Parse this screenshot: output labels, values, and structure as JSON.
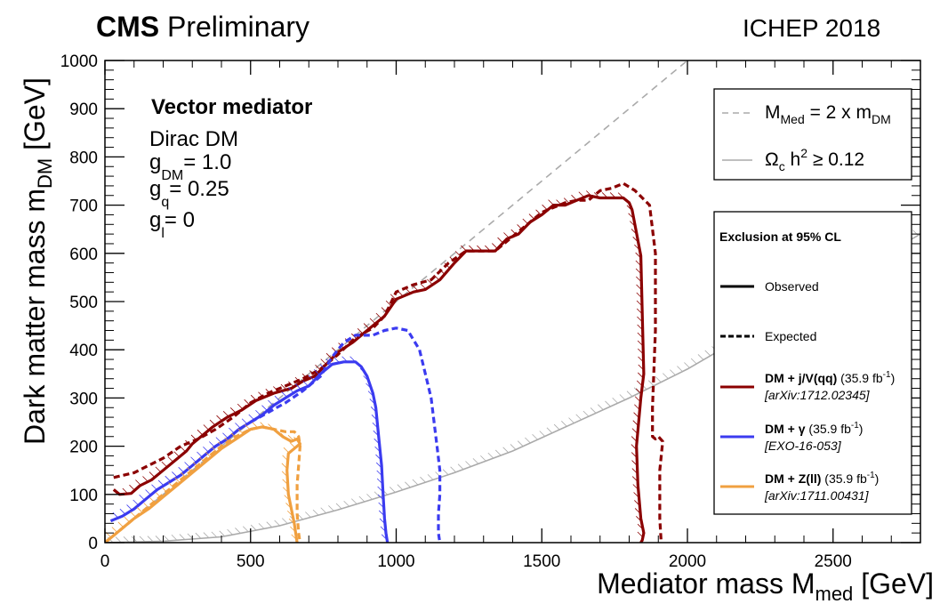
{
  "header": {
    "collab": "CMS",
    "status": "Preliminary",
    "conference": "ICHEP 2018"
  },
  "annotations": {
    "model": "Vector mediator",
    "dm_type": "Dirac DM",
    "couplings": [
      {
        "g": "g",
        "sub": "DM",
        "value": "= 1.0"
      },
      {
        "g": "g",
        "sub": "q",
        "value": "= 0.25"
      },
      {
        "g": "g",
        "sub": "l",
        "value": "= 0"
      }
    ]
  },
  "legend_top": {
    "line1": {
      "main": "M",
      "sub": "Med",
      "rest": " = 2 x m",
      "sub2": "DM"
    },
    "line2": {
      "main": "Ω",
      "sub": "c",
      "rest": " h",
      "sup": "2",
      "rest2": " ≥ 0.12"
    }
  },
  "legend_main": {
    "title": "Exclusion at 95% CL",
    "observed": "Observed",
    "expected": "Expected",
    "entries": [
      {
        "name": "DM + j/V(qq)",
        "lumi_pre": " (35.9 fb",
        "lumi_sup": "-1",
        "lumi_post": ")",
        "ref": "[arXiv:1712.02345]",
        "color": "#8b0000"
      },
      {
        "name": "DM + γ",
        "lumi_pre": " (35.9 fb",
        "lumi_sup": "-1",
        "lumi_post": ")",
        "ref": "[EXO-16-053]",
        "color": "#3b3bf0"
      },
      {
        "name": "DM + Z(ll)",
        "lumi_pre": " (35.9 fb",
        "lumi_sup": "-1",
        "lumi_post": ")",
        "ref": "[arXiv:1711.00431]",
        "color": "#f0a040"
      }
    ]
  },
  "chart_data": {
    "type": "line",
    "xlabel": {
      "main": "Mediator mass M",
      "sub": "med",
      "unit": " [GeV]"
    },
    "ylabel": {
      "main": "Dark matter mass m",
      "sub": "DM",
      "unit": " [GeV]"
    },
    "xlim": [
      0,
      2800
    ],
    "ylim": [
      0,
      1000
    ],
    "x_ticks": [
      0,
      500,
      1000,
      1500,
      2000,
      2500
    ],
    "y_ticks": [
      0,
      100,
      200,
      300,
      400,
      500,
      600,
      700,
      800,
      900,
      1000
    ],
    "x_tick_labels": [
      "0",
      "500",
      "1000",
      "1500",
      "2000",
      "2500"
    ],
    "y_tick_labels": [
      "0",
      "100",
      "200",
      "300",
      "400",
      "500",
      "600",
      "700",
      "800",
      "900",
      "1000"
    ],
    "diagonal": {
      "name": "M_Med = 2 x m_DM",
      "style": "dashed",
      "color": "#aaaaaa",
      "x": [
        0,
        2000
      ],
      "y": [
        0,
        1000
      ]
    },
    "relic": {
      "name": "Ωc h² ≥ 0.12",
      "style": "solid",
      "color": "#aaaaaa",
      "x": [
        0,
        200,
        400,
        600,
        800,
        1000,
        1200,
        1400,
        1600,
        1800,
        2000,
        2200,
        2400,
        2600,
        2800
      ],
      "y": [
        0,
        3,
        12,
        35,
        68,
        105,
        145,
        190,
        245,
        300,
        360,
        430,
        500,
        570,
        640
      ]
    },
    "series": [
      {
        "name": "DM + j/V(qq)",
        "type": "observed",
        "color": "#8b0000",
        "x": [
          30,
          50,
          90,
          120,
          160,
          200,
          240,
          280,
          300,
          340,
          370,
          420,
          470,
          520,
          580,
          640,
          680,
          720,
          760,
          800,
          850,
          900,
          960,
          1000,
          1060,
          1100,
          1150,
          1200,
          1240,
          1300,
          1340,
          1380,
          1420,
          1460,
          1500,
          1540,
          1580,
          1620,
          1660,
          1700,
          1740,
          1780,
          1800,
          1810,
          1840,
          1850,
          1840,
          1825,
          1830,
          1840,
          1850,
          1845,
          1840
        ],
        "y": [
          110,
          100,
          102,
          118,
          130,
          150,
          170,
          190,
          205,
          225,
          240,
          260,
          275,
          295,
          310,
          320,
          335,
          345,
          370,
          395,
          415,
          440,
          470,
          505,
          520,
          525,
          545,
          580,
          605,
          605,
          605,
          630,
          640,
          665,
          680,
          700,
          700,
          710,
          720,
          715,
          715,
          715,
          705,
          690,
          595,
          350,
          300,
          200,
          120,
          50,
          20,
          5,
          0
        ]
      },
      {
        "name": "DM + j/V(qq)",
        "type": "expected",
        "color": "#8b0000",
        "x": [
          30,
          100,
          150,
          200,
          260,
          320,
          380,
          440,
          500,
          560,
          620,
          680,
          740,
          800,
          860,
          920,
          960,
          1000,
          1060,
          1120,
          1180,
          1240,
          1300,
          1340,
          1380,
          1420,
          1460,
          1500,
          1540,
          1580,
          1620,
          1660,
          1700,
          1740,
          1780,
          1820,
          1870,
          1890,
          1890,
          1880,
          1880,
          1890,
          1900,
          1915,
          1905,
          1905,
          1910
        ],
        "y": [
          135,
          145,
          160,
          175,
          200,
          215,
          235,
          260,
          290,
          310,
          325,
          340,
          360,
          390,
          425,
          445,
          470,
          520,
          535,
          545,
          580,
          605,
          605,
          605,
          625,
          645,
          665,
          685,
          695,
          705,
          710,
          710,
          730,
          735,
          745,
          730,
          700,
          600,
          440,
          280,
          220,
          215,
          220,
          210,
          150,
          50,
          0
        ]
      },
      {
        "name": "DM + γ",
        "type": "observed",
        "color": "#3b3bf0",
        "x": [
          20,
          60,
          100,
          140,
          180,
          220,
          260,
          300,
          340,
          380,
          420,
          460,
          500,
          540,
          580,
          620,
          660,
          700,
          740,
          780,
          820,
          860,
          880,
          900,
          920,
          930,
          940,
          950,
          955,
          960,
          965,
          970
        ],
        "y": [
          45,
          55,
          70,
          90,
          110,
          125,
          140,
          160,
          180,
          200,
          215,
          235,
          250,
          265,
          285,
          300,
          315,
          325,
          350,
          370,
          375,
          375,
          365,
          345,
          310,
          280,
          220,
          160,
          100,
          50,
          20,
          0
        ]
      },
      {
        "name": "DM + γ",
        "type": "expected",
        "color": "#3b3bf0",
        "x": [
          500,
          560,
          620,
          680,
          740,
          780,
          820,
          860,
          920,
          960,
          1000,
          1040,
          1080,
          1100,
          1120,
          1130,
          1140,
          1150,
          1150,
          1145,
          1145,
          1150
        ],
        "y": [
          250,
          270,
          290,
          315,
          345,
          385,
          415,
          430,
          430,
          440,
          445,
          440,
          400,
          350,
          300,
          250,
          200,
          150,
          100,
          60,
          20,
          0
        ]
      },
      {
        "name": "DM + Z(ll)",
        "type": "observed",
        "color": "#f0a040",
        "x": [
          0,
          50,
          100,
          150,
          200,
          250,
          300,
          350,
          400,
          450,
          500,
          540,
          580,
          610,
          640,
          660,
          670,
          650,
          630,
          625,
          630,
          640,
          650,
          655,
          660
        ],
        "y": [
          0,
          25,
          50,
          70,
          95,
          120,
          145,
          170,
          195,
          215,
          235,
          240,
          235,
          220,
          210,
          215,
          205,
          195,
          185,
          150,
          100,
          70,
          40,
          20,
          0
        ]
      },
      {
        "name": "DM + Z(ll)",
        "type": "expected",
        "color": "#f0a040",
        "x": [
          0,
          50,
          100,
          150,
          200,
          250,
          300,
          350,
          400,
          450,
          500,
          540,
          580,
          620,
          650,
          665,
          670,
          665,
          660,
          660,
          665,
          670
        ],
        "y": [
          0,
          25,
          50,
          75,
          100,
          125,
          150,
          175,
          200,
          220,
          235,
          240,
          235,
          230,
          230,
          220,
          200,
          160,
          120,
          60,
          20,
          0
        ]
      }
    ]
  }
}
